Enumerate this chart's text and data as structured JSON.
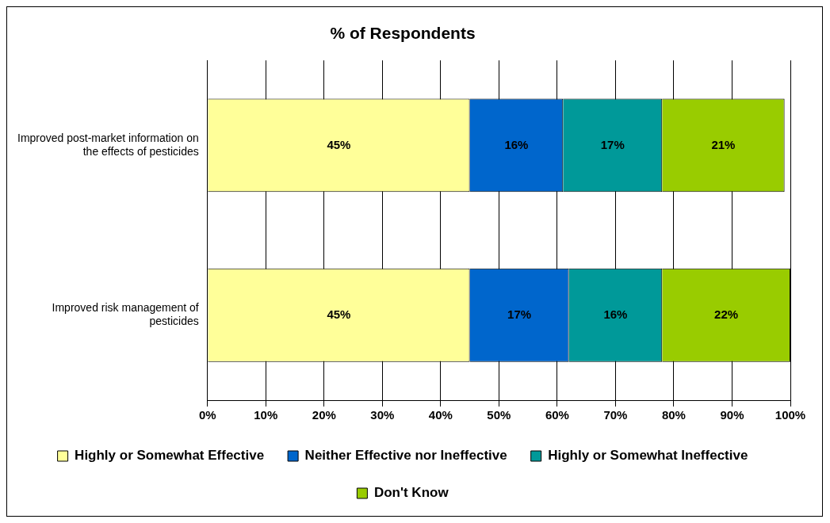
{
  "chart_data": {
    "type": "bar",
    "orientation": "horizontal",
    "stacked": true,
    "title": "% of Respondents",
    "categories": [
      "Improved post-market information on the effects of pesticides",
      "Improved risk management of pesticides"
    ],
    "series": [
      {
        "name": "Highly or Somewhat Effective",
        "color": "#ffff99",
        "values": [
          45,
          45
        ],
        "value_labels": [
          "45%",
          "45%"
        ]
      },
      {
        "name": "Neither Effective nor Ineffective",
        "color": "#0066cc",
        "values": [
          16,
          17
        ],
        "value_labels": [
          "16%",
          "17%"
        ]
      },
      {
        "name": "Highly or Somewhat Ineffective",
        "color": "#009999",
        "values": [
          17,
          16
        ],
        "value_labels": [
          "17%",
          "16%"
        ]
      },
      {
        "name": "Don't Know",
        "color": "#99cc00",
        "values": [
          21,
          22
        ],
        "value_labels": [
          "21%",
          "22%"
        ]
      }
    ],
    "xlim": [
      0,
      100
    ],
    "xticks": [
      {
        "value": 0,
        "label": "0%"
      },
      {
        "value": 10,
        "label": "10%"
      },
      {
        "value": 20,
        "label": "20%"
      },
      {
        "value": 30,
        "label": "30%"
      },
      {
        "value": 40,
        "label": "40%"
      },
      {
        "value": 50,
        "label": "50%"
      },
      {
        "value": 60,
        "label": "60%"
      },
      {
        "value": 70,
        "label": "70%"
      },
      {
        "value": 80,
        "label": "80%"
      },
      {
        "value": 90,
        "label": "90%"
      },
      {
        "value": 100,
        "label": "100%"
      }
    ],
    "grid": "x",
    "legend": "bottom"
  }
}
